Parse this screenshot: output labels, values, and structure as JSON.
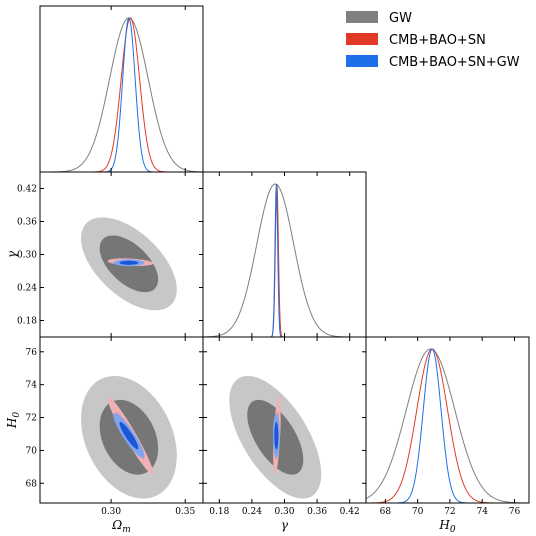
{
  "chart_data": {
    "type": "corner-plot",
    "parameters": [
      {
        "key": "om",
        "label": "Ωm",
        "ticks": [
          0.3,
          0.35
        ],
        "tick_labels": [
          "0.30",
          "0.35"
        ],
        "range": [
          0.252,
          0.362
        ]
      },
      {
        "key": "gamma",
        "label": "γ",
        "ticks": [
          0.18,
          0.24,
          0.3,
          0.36,
          0.42
        ],
        "tick_labels": [
          "0.18",
          "0.24",
          "0.30",
          "0.36",
          "0.42"
        ],
        "range": [
          0.15,
          0.45
        ]
      },
      {
        "key": "h0",
        "label": "H0",
        "ticks": [
          68,
          70,
          72,
          74,
          76
        ],
        "tick_labels": [
          "68",
          "70",
          "72",
          "74",
          "76"
        ],
        "range": [
          66.8,
          76.9
        ]
      }
    ],
    "legend": {
      "placement": "top-right",
      "entries": [
        {
          "name": "GW",
          "color": "#7f7f7f"
        },
        {
          "name": "CMB+BAO+SN",
          "color": "#e03a26"
        },
        {
          "name": "CMB+BAO+SN+GW",
          "color": "#1e6fe8"
        }
      ]
    },
    "series": [
      {
        "name": "GW",
        "color": "#7f7f7f",
        "mean": {
          "om": 0.312,
          "gamma": 0.283,
          "h0": 70.8
        },
        "sigma": {
          "om": 0.013,
          "gamma": 0.034,
          "h0": 1.5
        },
        "corr": {
          "om_gamma": -0.55,
          "om_h0": -0.3,
          "gamma_h0": -0.6
        }
      },
      {
        "name": "CMB+BAO+SN",
        "color": "#e03a26",
        "mean": {
          "om": 0.313,
          "gamma": 0.286,
          "h0": 70.9
        },
        "sigma": {
          "om": 0.0062,
          "gamma": 0.0028,
          "h0": 0.95
        },
        "corr": {
          "om_gamma": -0.3,
          "om_h0": -0.96,
          "gamma_h0": 0.5
        }
      },
      {
        "name": "CMB+BAO+SN+GW",
        "color": "#1e6fe8",
        "mean": {
          "om": 0.312,
          "gamma": 0.285,
          "h0": 70.9
        },
        "sigma": {
          "om": 0.0042,
          "gamma": 0.0025,
          "h0": 0.55
        },
        "corr": {
          "om_gamma": 0.0,
          "om_h0": -0.9,
          "gamma_h0": 0.0
        }
      }
    ]
  }
}
